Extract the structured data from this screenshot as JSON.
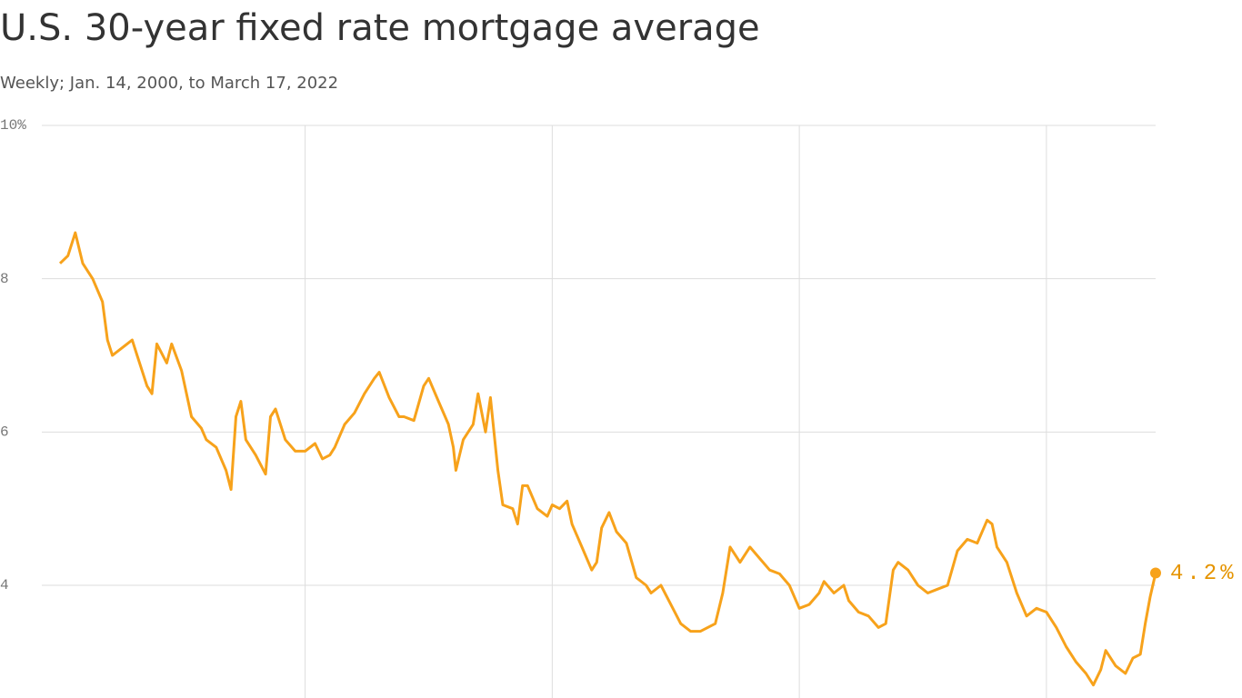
{
  "chart_data": {
    "type": "line",
    "title": "U.S. 30-year fixed rate mortgage average",
    "subtitle": "Weekly; Jan. 14, 2000, to March 17, 2022",
    "color": "#f7a21b",
    "end_label": "4.2%",
    "x": [
      2000.04,
      2000.2,
      2000.35,
      2000.5,
      2000.7,
      2000.9,
      2001.0,
      2001.1,
      2001.3,
      2001.5,
      2001.6,
      2001.8,
      2001.9,
      2002.0,
      2002.2,
      2002.3,
      2002.5,
      2002.7,
      2002.9,
      2003.0,
      2003.2,
      2003.4,
      2003.5,
      2003.6,
      2003.7,
      2003.8,
      2004.0,
      2004.2,
      2004.3,
      2004.4,
      2004.6,
      2004.8,
      2005.0,
      2005.2,
      2005.35,
      2005.5,
      2005.6,
      2005.8,
      2006.0,
      2006.2,
      2006.4,
      2006.5,
      2006.7,
      2006.9,
      2007.0,
      2007.2,
      2007.4,
      2007.5,
      2007.7,
      2007.9,
      2008.0,
      2008.05,
      2008.2,
      2008.4,
      2008.5,
      2008.65,
      2008.75,
      2008.9,
      2009.0,
      2009.2,
      2009.3,
      2009.4,
      2009.5,
      2009.7,
      2009.9,
      2010.0,
      2010.15,
      2010.3,
      2010.4,
      2010.6,
      2010.8,
      2010.9,
      2011.0,
      2011.15,
      2011.3,
      2011.5,
      2011.7,
      2011.9,
      2012.0,
      2012.2,
      2012.4,
      2012.6,
      2012.8,
      2013.0,
      2013.3,
      2013.45,
      2013.6,
      2013.8,
      2014.0,
      2014.2,
      2014.4,
      2014.6,
      2014.8,
      2015.0,
      2015.2,
      2015.4,
      2015.5,
      2015.7,
      2015.9,
      2016.0,
      2016.2,
      2016.4,
      2016.6,
      2016.75,
      2016.9,
      2017.0,
      2017.2,
      2017.4,
      2017.6,
      2017.8,
      2018.0,
      2018.2,
      2018.4,
      2018.6,
      2018.8,
      2018.9,
      2019.0,
      2019.2,
      2019.4,
      2019.6,
      2019.8,
      2020.0,
      2020.2,
      2020.4,
      2020.6,
      2020.8,
      2020.95,
      2021.1,
      2021.2,
      2021.4,
      2021.6,
      2021.75,
      2021.9,
      2022.0,
      2022.1,
      2022.21
    ],
    "values": [
      8.2,
      8.3,
      8.6,
      8.2,
      8.0,
      7.7,
      7.2,
      7.0,
      7.1,
      7.2,
      7.0,
      6.6,
      6.5,
      7.15,
      6.9,
      7.15,
      6.8,
      6.2,
      6.05,
      5.9,
      5.8,
      5.5,
      5.25,
      6.2,
      6.4,
      5.9,
      5.7,
      5.45,
      6.2,
      6.3,
      5.9,
      5.75,
      5.75,
      5.85,
      5.65,
      5.7,
      5.8,
      6.1,
      6.25,
      6.5,
      6.7,
      6.78,
      6.45,
      6.2,
      6.2,
      6.15,
      6.6,
      6.7,
      6.4,
      6.1,
      5.8,
      5.5,
      5.9,
      6.1,
      6.5,
      6.0,
      6.45,
      5.5,
      5.05,
      5.0,
      4.8,
      5.3,
      5.3,
      5.0,
      4.9,
      5.05,
      5.0,
      5.1,
      4.8,
      4.5,
      4.2,
      4.3,
      4.75,
      4.95,
      4.7,
      4.55,
      4.1,
      4.0,
      3.9,
      4.0,
      3.75,
      3.5,
      3.4,
      3.4,
      3.5,
      3.9,
      4.5,
      4.3,
      4.5,
      4.35,
      4.2,
      4.15,
      4.0,
      3.7,
      3.75,
      3.9,
      4.05,
      3.9,
      4.0,
      3.8,
      3.65,
      3.6,
      3.45,
      3.5,
      4.2,
      4.3,
      4.2,
      4.0,
      3.9,
      3.95,
      4.0,
      4.45,
      4.6,
      4.55,
      4.85,
      4.8,
      4.5,
      4.3,
      3.9,
      3.6,
      3.7,
      3.65,
      3.45,
      3.2,
      3.0,
      2.85,
      2.7,
      2.9,
      3.15,
      2.95,
      2.85,
      3.05,
      3.1,
      3.5,
      3.85,
      4.16
    ],
    "xlim": [
      2000.04,
      2022.21
    ],
    "xgrid": [
      2005,
      2010,
      2015,
      2020
    ],
    "ylim": [
      2.53,
      10
    ],
    "yticks": [
      {
        "value": 10,
        "label": "10%"
      },
      8,
      6,
      4
    ],
    "grid": true
  }
}
